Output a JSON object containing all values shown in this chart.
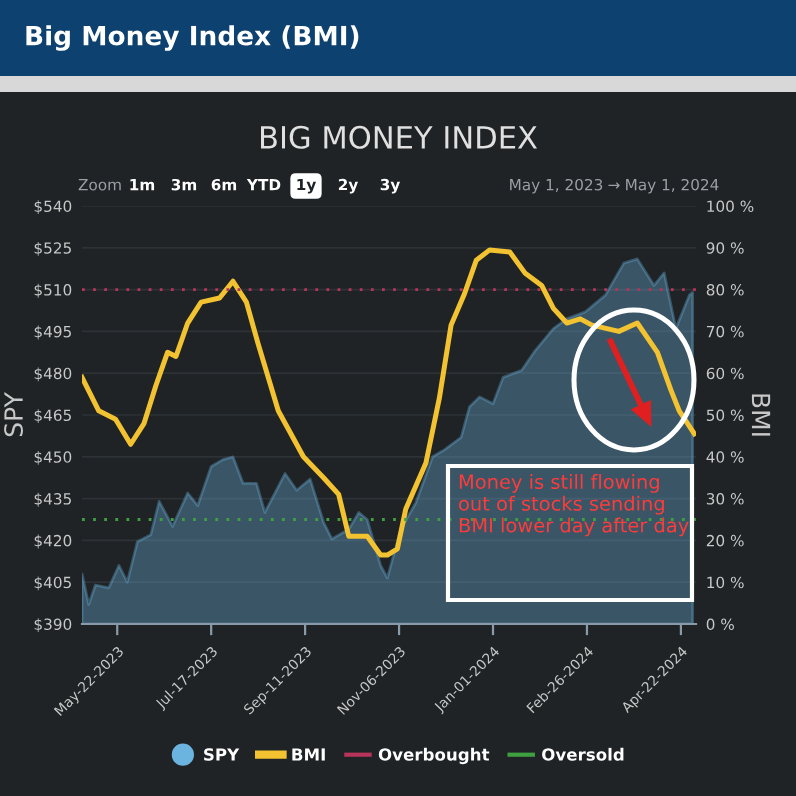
{
  "chart_data": {
    "type": "area",
    "title": "Big Money Index (BMI)",
    "subtitle": "BIG MONEY INDEX",
    "ylabel": "SPY",
    "y2label": "BMI",
    "annotations": [
      "Money is still flowing out of stocks sending BMI lower day after day",
      "Zoom",
      "1m",
      "3m",
      "6m",
      "YTD",
      "1y",
      "2y",
      "3y",
      "May 1, 2023",
      "→",
      "May 1, 2024"
    ],
    "xlim": [
      "2023-05-01",
      "2024-05-01"
    ],
    "xticks": [
      {
        "value": "2023-05-22",
        "label": "May-22-2023"
      },
      {
        "value": "2023-07-17",
        "label": "Jul-17-2023"
      },
      {
        "value": "2023-09-11",
        "label": "Sep-11-2023"
      },
      {
        "value": "2023-11-06",
        "label": "Nov-06-2023"
      },
      {
        "value": "2024-01-01",
        "label": "Jan-01-2024"
      },
      {
        "value": "2024-02-26",
        "label": "Feb-26-2024"
      },
      {
        "value": "2024-04-22",
        "label": "Apr-22-2024"
      }
    ],
    "ylim": [
      390,
      540
    ],
    "yticks": [
      {
        "value": 390,
        "label": "$390"
      },
      {
        "value": 405,
        "label": "$405"
      },
      {
        "value": 420,
        "label": "$420"
      },
      {
        "value": 435,
        "label": "$435"
      },
      {
        "value": 450,
        "label": "$450"
      },
      {
        "value": 465,
        "label": "$465"
      },
      {
        "value": 480,
        "label": "$480"
      },
      {
        "value": 495,
        "label": "$495"
      },
      {
        "value": 510,
        "label": "$510"
      },
      {
        "value": 525,
        "label": "$525"
      },
      {
        "value": 540,
        "label": "$540"
      }
    ],
    "y2lim": [
      0,
      100
    ],
    "y2ticks": [
      {
        "value": 0,
        "label": "0 %"
      },
      {
        "value": 10,
        "label": "10 %"
      },
      {
        "value": 20,
        "label": "20 %"
      },
      {
        "value": 30,
        "label": "30 %"
      },
      {
        "value": 40,
        "label": "40 %"
      },
      {
        "value": 50,
        "label": "50 %"
      },
      {
        "value": 60,
        "label": "60 %"
      },
      {
        "value": 70,
        "label": "70 %"
      },
      {
        "value": 80,
        "label": "80 %"
      },
      {
        "value": 90,
        "label": "90 %"
      },
      {
        "value": 100,
        "label": "100 %"
      }
    ],
    "series": [
      {
        "name": "SPY",
        "color": "#6cb4e0",
        "x": [
          "2023-05-01",
          "2023-05-05",
          "2023-05-09",
          "2023-05-17",
          "2023-05-23",
          "2023-05-28",
          "2023-06-03",
          "2023-06-11",
          "2023-06-16",
          "2023-06-24",
          "2023-07-03",
          "2023-07-09",
          "2023-07-17",
          "2023-07-24",
          "2023-07-30",
          "2023-08-05",
          "2023-08-13",
          "2023-08-18",
          "2023-08-30",
          "2023-09-06",
          "2023-09-14",
          "2023-09-22",
          "2023-09-27",
          "2023-10-07",
          "2023-10-13",
          "2023-10-18",
          "2023-10-26",
          "2023-10-30",
          "2023-11-07",
          "2023-11-16",
          "2023-11-26",
          "2023-12-03",
          "2023-12-13",
          "2023-12-18",
          "2023-12-24",
          "2024-01-01",
          "2024-01-07",
          "2024-01-18",
          "2024-01-26",
          "2024-02-06",
          "2024-02-14",
          "2024-02-25",
          "2024-03-08",
          "2024-03-19",
          "2024-03-27",
          "2024-04-06",
          "2024-04-12",
          "2024-04-19",
          "2024-04-27",
          "2024-04-29"
        ],
        "values": [
          408,
          397,
          404,
          403,
          411,
          405,
          419.5,
          422,
          434,
          425,
          437,
          432.5,
          446.5,
          449,
          450,
          440.5,
          440.5,
          430,
          444,
          438,
          442,
          426.5,
          420.5,
          424,
          430,
          427.5,
          411,
          406.5,
          424,
          433.5,
          450,
          452.5,
          457,
          468,
          471.5,
          469,
          478.5,
          481,
          488,
          496,
          499.5,
          502,
          508,
          519.5,
          521,
          511.5,
          516,
          496,
          508,
          509
        ]
      },
      {
        "name": "BMI",
        "type": "line",
        "axis": "y2",
        "color": "#f2c230",
        "x": [
          "2023-05-01",
          "2023-05-11",
          "2023-05-21",
          "2023-05-30",
          "2023-06-07",
          "2023-06-14",
          "2023-06-21",
          "2023-06-26",
          "2023-07-03",
          "2023-07-11",
          "2023-07-22",
          "2023-07-30",
          "2023-08-07",
          "2023-08-14",
          "2023-08-26",
          "2023-09-10",
          "2023-09-22",
          "2023-10-01",
          "2023-10-07",
          "2023-10-18",
          "2023-10-26",
          "2023-10-30",
          "2023-11-05",
          "2023-11-10",
          "2023-11-22",
          "2023-11-30",
          "2023-12-07",
          "2023-12-15",
          "2023-12-22",
          "2023-12-30",
          "2024-01-11",
          "2024-01-20",
          "2024-01-30",
          "2024-02-06",
          "2024-02-14",
          "2024-02-22",
          "2024-02-29",
          "2024-03-16",
          "2024-03-27",
          "2024-04-08",
          "2024-04-16",
          "2024-04-21",
          "2024-04-30"
        ],
        "values": [
          59,
          51,
          49,
          43,
          48,
          57,
          65,
          64,
          72,
          77,
          78,
          82,
          77,
          67,
          51,
          40,
          35,
          31,
          21,
          21,
          16.5,
          16.5,
          18,
          27.5,
          38.5,
          54,
          71.5,
          79,
          87,
          89.5,
          89,
          84,
          81,
          75.5,
          72,
          73,
          71.5,
          70,
          72,
          65,
          56,
          51,
          45.5
        ]
      }
    ],
    "ref_lines": [
      {
        "axis": "y2",
        "value": 80,
        "label": "Overbought",
        "color": "#b8345a",
        "line_style": "dotted"
      },
      {
        "axis": "y2",
        "value": 25,
        "label": "Oversold",
        "color": "#3fa040",
        "line_style": "dotted"
      }
    ],
    "grid": "y",
    "legend": "bottom"
  }
}
